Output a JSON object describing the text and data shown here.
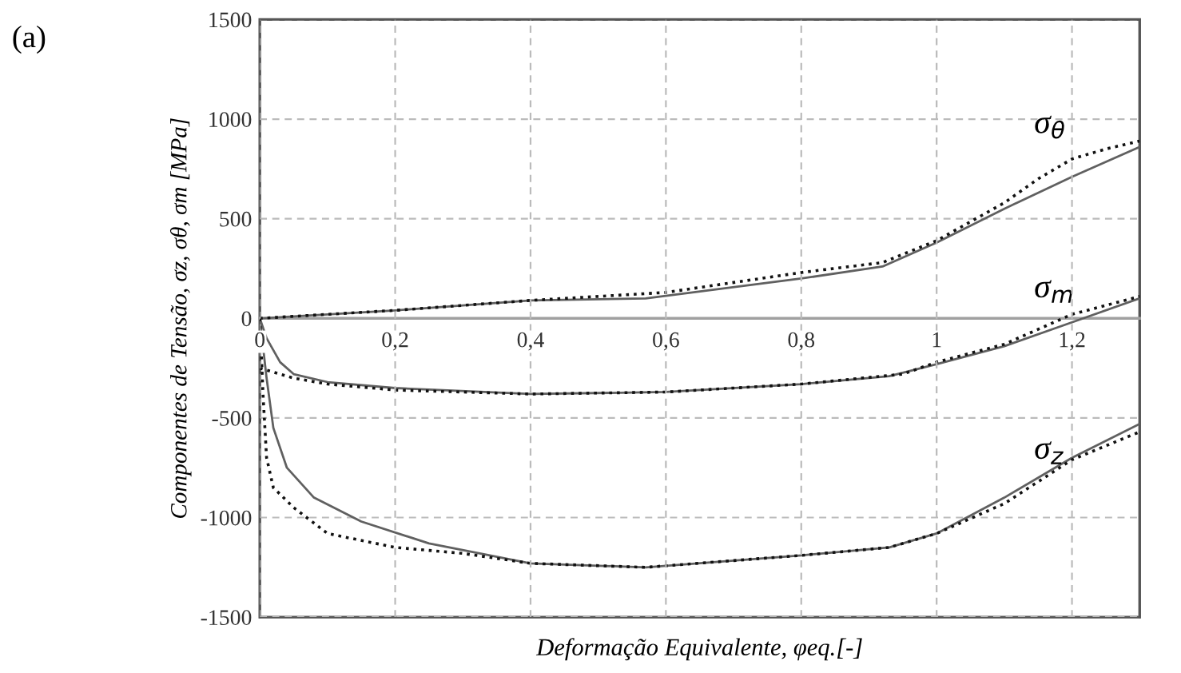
{
  "chart_data": {
    "type": "line",
    "xlabel": "Deformação Equivalente, φeq.[-]",
    "ylabel": "Componentes de Tensão, σz, σθ, σm [MPa]",
    "xlim": [
      0,
      1.3
    ],
    "ylim": [
      -1500,
      1500
    ],
    "xticks": [
      0,
      {
        "value": 0.2,
        "label": "0,2"
      },
      {
        "value": 0.4,
        "label": "0,4"
      },
      {
        "value": 0.6,
        "label": "0,6"
      },
      {
        "value": 0.8,
        "label": "0,8"
      },
      1,
      {
        "value": 1.2,
        "label": "1,2"
      }
    ],
    "yticks": [
      -1500,
      -1000,
      -500,
      0,
      500,
      1000,
      1500
    ],
    "grid": true,
    "legend": false,
    "marker": "none",
    "series": [
      {
        "color": "#606060",
        "line_style": "solid",
        "x": [
          0,
          0.2,
          0.4,
          0.57,
          0.8,
          0.92,
          1.0,
          1.1,
          1.2,
          1.3
        ],
        "values": [
          0,
          40,
          90,
          100,
          200,
          260,
          380,
          550,
          710,
          860
        ]
      },
      {
        "color": "#111111",
        "line_style": "dotted",
        "x": [
          0,
          0.2,
          0.4,
          0.6,
          0.8,
          0.92,
          1.0,
          1.1,
          1.15,
          1.2,
          1.25,
          1.3
        ],
        "values": [
          0,
          40,
          90,
          130,
          230,
          280,
          390,
          580,
          700,
          800,
          850,
          890
        ]
      },
      {
        "color": "#606060",
        "line_style": "solid",
        "x": [
          0,
          0.01,
          0.03,
          0.05,
          0.1,
          0.2,
          0.4,
          0.6,
          0.8,
          0.93,
          1.0,
          1.1,
          1.2,
          1.3
        ],
        "values": [
          0,
          -100,
          -220,
          -280,
          -320,
          -350,
          -380,
          -370,
          -330,
          -290,
          -230,
          -140,
          -20,
          100
        ]
      },
      {
        "color": "#111111",
        "line_style": "dotted",
        "x": [
          0,
          0.05,
          0.1,
          0.2,
          0.4,
          0.6,
          0.8,
          0.95,
          1.0,
          1.1,
          1.2,
          1.3
        ],
        "values": [
          -250,
          -300,
          -330,
          -360,
          -380,
          -370,
          -330,
          -280,
          -220,
          -130,
          20,
          110
        ]
      },
      {
        "color": "#606060",
        "line_style": "solid",
        "x": [
          0,
          0.01,
          0.02,
          0.04,
          0.08,
          0.15,
          0.25,
          0.4,
          0.57,
          0.8,
          0.93,
          1.0,
          1.1,
          1.2,
          1.3
        ],
        "values": [
          0,
          -300,
          -550,
          -750,
          -900,
          -1020,
          -1130,
          -1230,
          -1250,
          -1190,
          -1150,
          -1080,
          -900,
          -700,
          -530
        ]
      },
      {
        "color": "#111111",
        "line_style": "dotted",
        "x": [
          0,
          0.005,
          0.01,
          0.02,
          0.05,
          0.1,
          0.2,
          0.3,
          0.4,
          0.57,
          0.8,
          0.93,
          1.0,
          1.1,
          1.2,
          1.3
        ],
        "values": [
          0,
          -400,
          -700,
          -850,
          -950,
          -1080,
          -1150,
          -1180,
          -1230,
          -1250,
          -1190,
          -1150,
          -1080,
          -930,
          -710,
          -570
        ]
      }
    ],
    "annotations": [
      "σ$_{θ}$",
      "σ$_{m}$",
      "σ$_{z}$",
      "(a)"
    ]
  }
}
